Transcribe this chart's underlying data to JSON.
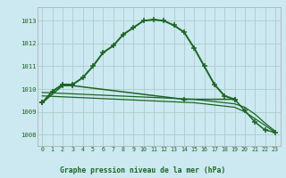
{
  "title": "Graphe pression niveau de la mer (hPa)",
  "background_color": "#cce8f0",
  "plot_bg_color": "#cce8f0",
  "grid_color": "#aacccc",
  "line_color": "#1a6622",
  "title_bg": "#1a6622",
  "title_fg": "#ffffff",
  "xlim": [
    -0.5,
    23.5
  ],
  "ylim": [
    1007.5,
    1013.6
  ],
  "yticks": [
    1008,
    1009,
    1010,
    1011,
    1012,
    1013
  ],
  "xticks": [
    0,
    1,
    2,
    3,
    4,
    5,
    6,
    7,
    8,
    9,
    10,
    11,
    12,
    13,
    14,
    15,
    16,
    17,
    18,
    19,
    20,
    21,
    22,
    23
  ],
  "series": [
    {
      "x": [
        0,
        1,
        2,
        3,
        4,
        5,
        6,
        7,
        8,
        9,
        10,
        11,
        12,
        13,
        14,
        15,
        16,
        17,
        18,
        19
      ],
      "y": [
        1009.4,
        1009.9,
        1010.2,
        1010.2,
        1010.5,
        1011.0,
        1011.6,
        1011.9,
        1012.4,
        1012.7,
        1013.0,
        1013.05,
        1013.0,
        1012.8,
        1012.5,
        1011.8,
        1011.0,
        1010.2,
        1009.7,
        1009.55
      ],
      "marker": "+",
      "linewidth": 1.4,
      "markersize": 4.5
    },
    {
      "x": [
        0,
        1,
        2,
        3,
        4,
        5,
        6,
        7,
        8,
        9,
        10,
        11,
        12,
        13,
        14,
        15,
        16,
        17,
        18,
        19,
        20,
        21,
        22,
        23
      ],
      "y": [
        1009.85,
        1009.83,
        1009.81,
        1009.79,
        1009.77,
        1009.75,
        1009.73,
        1009.71,
        1009.69,
        1009.67,
        1009.65,
        1009.63,
        1009.61,
        1009.59,
        1009.57,
        1009.55,
        1009.5,
        1009.45,
        1009.4,
        1009.35,
        1009.2,
        1008.9,
        1008.5,
        1008.15
      ],
      "marker": null,
      "linewidth": 0.9,
      "markersize": 0
    },
    {
      "x": [
        0,
        1,
        2,
        3,
        4,
        5,
        6,
        7,
        8,
        9,
        10,
        11,
        12,
        13,
        14,
        15,
        16,
        17,
        18,
        19,
        20,
        21,
        22,
        23
      ],
      "y": [
        1009.7,
        1009.68,
        1009.66,
        1009.64,
        1009.62,
        1009.6,
        1009.58,
        1009.56,
        1009.54,
        1009.52,
        1009.5,
        1009.48,
        1009.46,
        1009.44,
        1009.42,
        1009.4,
        1009.35,
        1009.3,
        1009.25,
        1009.2,
        1009.0,
        1008.7,
        1008.4,
        1008.1
      ],
      "marker": null,
      "linewidth": 0.9,
      "markersize": 0
    },
    {
      "x": [
        0,
        2,
        3,
        14,
        19,
        20,
        21,
        22,
        23
      ],
      "y": [
        1009.4,
        1010.15,
        1010.15,
        1009.55,
        1009.55,
        1009.05,
        1008.55,
        1008.2,
        1008.1
      ],
      "marker": "+",
      "linewidth": 1.1,
      "markersize": 4.5
    }
  ]
}
